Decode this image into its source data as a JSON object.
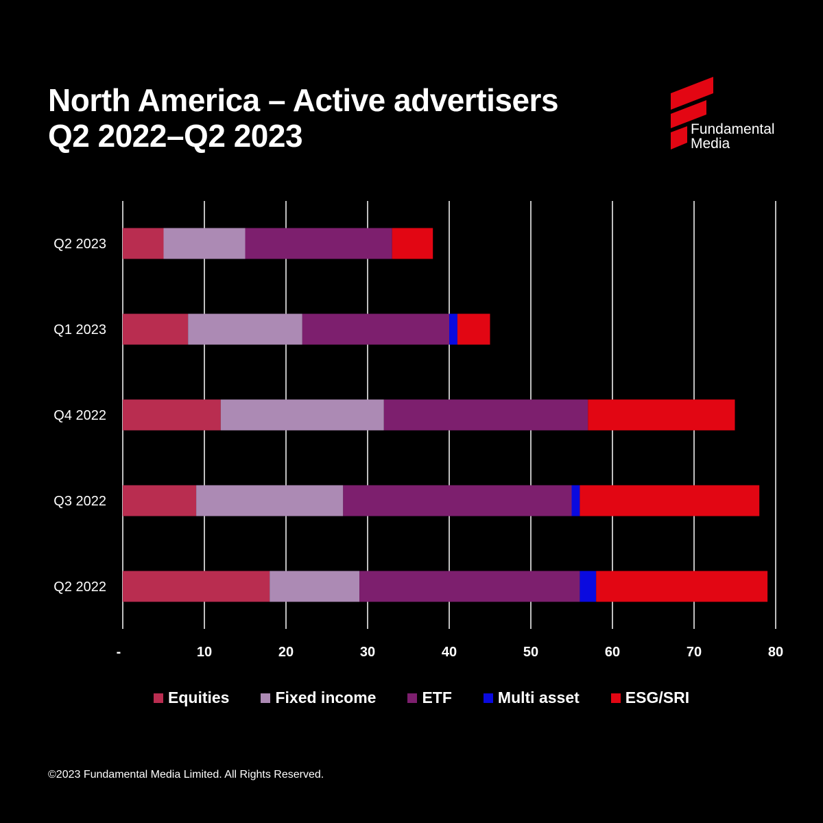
{
  "header": {
    "title_line1": "North America – Active advertisers",
    "title_line2": "Q2 2022–Q2 2023"
  },
  "logo": {
    "line1": "Fundamental",
    "line2": "Media",
    "mark_icon": "fundamental-media-logo-mark",
    "mark_color": "#e30613"
  },
  "chart_data": {
    "type": "bar",
    "orientation": "horizontal",
    "stacked": true,
    "categories": [
      "Q2 2023",
      "Q1 2023",
      "Q4 2022",
      "Q3 2022",
      "Q2 2022"
    ],
    "series": [
      {
        "name": "Equities",
        "color": "#b92d50",
        "values": [
          5,
          8,
          12,
          9,
          18
        ]
      },
      {
        "name": "Fixed income",
        "color": "#ac8ab4",
        "values": [
          10,
          14,
          20,
          18,
          11
        ]
      },
      {
        "name": "ETF",
        "color": "#7d1f6e",
        "values": [
          18,
          18,
          25,
          28,
          27
        ]
      },
      {
        "name": "Multi asset",
        "color": "#0a0adf",
        "values": [
          0,
          1,
          0,
          1,
          2
        ]
      },
      {
        "name": "ESG/SRI",
        "color": "#e20613",
        "values": [
          5,
          4,
          18,
          22,
          21
        ]
      }
    ],
    "xlim": [
      0,
      80
    ],
    "xticks": [
      0,
      10,
      20,
      30,
      40,
      50,
      60,
      70,
      80
    ],
    "xtick_labels": [
      "-",
      "10",
      "20",
      "30",
      "40",
      "50",
      "60",
      "70",
      "80"
    ],
    "grid": "vertical",
    "legend_position": "bottom"
  },
  "footer": {
    "copyright": "©2023 Fundamental Media Limited. All Rights Reserved."
  },
  "colors": {
    "background": "#000000",
    "text": "#ffffff",
    "grid": "#ffffff"
  }
}
